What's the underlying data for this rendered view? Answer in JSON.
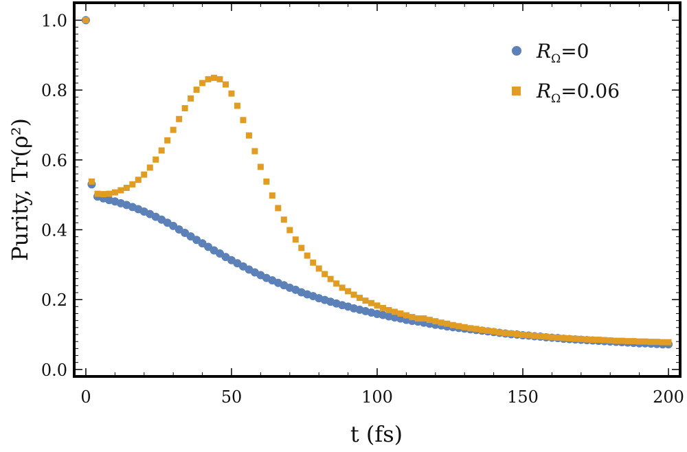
{
  "chart_data": {
    "type": "scatter",
    "xlabel": "t (fs)",
    "ylabel": "Purity, Tr(ρ²)",
    "xlim": [
      -4,
      204
    ],
    "ylim": [
      -0.02,
      1.05
    ],
    "xticks": [
      0,
      50,
      100,
      150,
      200
    ],
    "xtick_labels": [
      "0",
      "50",
      "100",
      "150",
      "200"
    ],
    "yticks": [
      0.0,
      0.2,
      0.4,
      0.6,
      0.8,
      1.0
    ],
    "ytick_labels": [
      "0.0",
      "0.2",
      "0.4",
      "0.6",
      "0.8",
      "1.0"
    ],
    "legend_position": "top-right",
    "series": [
      {
        "name": "R_Ω=0",
        "label_main": "R",
        "label_sub": "Ω",
        "label_rest": "=0",
        "marker": "circle",
        "color": "#5c81b9",
        "x": [
          0,
          2,
          4,
          6,
          8,
          10,
          12,
          14,
          16,
          18,
          20,
          22,
          24,
          26,
          28,
          30,
          32,
          34,
          36,
          38,
          40,
          42,
          44,
          46,
          48,
          50,
          52,
          54,
          56,
          58,
          60,
          62,
          64,
          66,
          68,
          70,
          72,
          74,
          76,
          78,
          80,
          82,
          84,
          86,
          88,
          90,
          92,
          94,
          96,
          98,
          100,
          102,
          104,
          106,
          108,
          110,
          112,
          114,
          116,
          118,
          120,
          122,
          124,
          126,
          128,
          130,
          132,
          134,
          136,
          138,
          140,
          142,
          144,
          146,
          148,
          150,
          152,
          154,
          156,
          158,
          160,
          162,
          164,
          166,
          168,
          170,
          172,
          174,
          176,
          178,
          180,
          182,
          184,
          186,
          188,
          190,
          192,
          194,
          196,
          198,
          200
        ],
        "values": [
          1.0,
          0.53,
          0.495,
          0.49,
          0.485,
          0.481,
          0.476,
          0.471,
          0.465,
          0.459,
          0.452,
          0.445,
          0.437,
          0.429,
          0.42,
          0.411,
          0.401,
          0.391,
          0.381,
          0.371,
          0.361,
          0.351,
          0.341,
          0.332,
          0.322,
          0.313,
          0.304,
          0.295,
          0.286,
          0.278,
          0.27,
          0.262,
          0.255,
          0.248,
          0.241,
          0.234,
          0.228,
          0.221,
          0.215,
          0.21,
          0.204,
          0.199,
          0.194,
          0.189,
          0.184,
          0.18,
          0.175,
          0.171,
          0.167,
          0.163,
          0.159,
          0.156,
          0.152,
          0.149,
          0.146,
          0.142,
          0.139,
          0.137,
          0.134,
          0.131,
          0.128,
          0.126,
          0.123,
          0.121,
          0.119,
          0.117,
          0.115,
          0.113,
          0.111,
          0.109,
          0.107,
          0.105,
          0.103,
          0.101,
          0.1,
          0.098,
          0.097,
          0.095,
          0.094,
          0.092,
          0.091,
          0.09,
          0.088,
          0.087,
          0.086,
          0.085,
          0.084,
          0.083,
          0.082,
          0.081,
          0.08,
          0.079,
          0.078,
          0.077,
          0.076,
          0.075,
          0.075,
          0.074,
          0.073,
          0.072,
          0.072
        ]
      },
      {
        "name": "R_Ω=0.06",
        "label_main": "R",
        "label_sub": "Ω",
        "label_rest": "=0.06",
        "marker": "square",
        "color": "#e19c24",
        "x": [
          0,
          2,
          4,
          6,
          8,
          10,
          12,
          14,
          16,
          18,
          20,
          22,
          24,
          26,
          28,
          30,
          32,
          34,
          36,
          38,
          40,
          42,
          44,
          46,
          48,
          50,
          52,
          54,
          56,
          58,
          60,
          62,
          64,
          66,
          68,
          70,
          72,
          74,
          76,
          78,
          80,
          82,
          84,
          86,
          88,
          90,
          92,
          94,
          96,
          98,
          100,
          102,
          104,
          106,
          108,
          110,
          112,
          114,
          116,
          118,
          120,
          122,
          124,
          126,
          128,
          130,
          132,
          134,
          136,
          138,
          140,
          142,
          144,
          146,
          148,
          150,
          152,
          154,
          156,
          158,
          160,
          162,
          164,
          166,
          168,
          170,
          172,
          174,
          176,
          178,
          180,
          182,
          184,
          186,
          188,
          190,
          192,
          194,
          196,
          198,
          200
        ],
        "values": [
          1.0,
          0.538,
          0.503,
          0.502,
          0.503,
          0.507,
          0.513,
          0.52,
          0.53,
          0.543,
          0.558,
          0.578,
          0.601,
          0.627,
          0.656,
          0.686,
          0.717,
          0.748,
          0.776,
          0.801,
          0.82,
          0.831,
          0.835,
          0.831,
          0.816,
          0.79,
          0.755,
          0.714,
          0.67,
          0.625,
          0.58,
          0.538,
          0.498,
          0.462,
          0.429,
          0.399,
          0.372,
          0.348,
          0.326,
          0.306,
          0.289,
          0.273,
          0.259,
          0.246,
          0.234,
          0.224,
          0.214,
          0.205,
          0.197,
          0.19,
          0.183,
          0.176,
          0.17,
          0.165,
          0.16,
          0.155,
          0.15,
          0.146,
          0.146,
          0.142,
          0.138,
          0.134,
          0.131,
          0.127,
          0.124,
          0.121,
          0.118,
          0.116,
          0.113,
          0.111,
          0.109,
          0.106,
          0.104,
          0.103,
          0.101,
          0.099,
          0.098,
          0.096,
          0.095,
          0.094,
          0.092,
          0.091,
          0.09,
          0.089,
          0.088,
          0.087,
          0.086,
          0.085,
          0.085,
          0.084,
          0.083,
          0.082,
          0.082,
          0.081,
          0.081,
          0.08,
          0.08,
          0.079,
          0.079,
          0.078,
          0.078
        ]
      }
    ]
  }
}
